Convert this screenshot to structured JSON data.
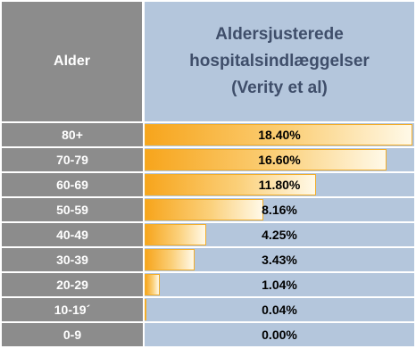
{
  "chart_data": {
    "type": "table",
    "header": {
      "category_label": "Alder",
      "value_label_lines": [
        "Aldersjusterede",
        "hospitalsindlæggelser",
        "(Verity et al)"
      ]
    },
    "categories": [
      "80+",
      "70-79",
      "60-69",
      "50-59",
      "40-49",
      "30-39",
      "20-29",
      "10-19´",
      "0-9"
    ],
    "values": [
      18.4,
      16.6,
      11.8,
      8.16,
      4.25,
      3.43,
      1.04,
      0.04,
      0.0
    ],
    "labels": [
      "18.40%",
      "16.60%",
      "11.80%",
      "8.16%",
      "4.25%",
      "3.43%",
      "1.04%",
      "0.04%",
      "0.00%"
    ],
    "unit": "%",
    "max_value": 18.4,
    "bar_color": "#f7a51c"
  }
}
